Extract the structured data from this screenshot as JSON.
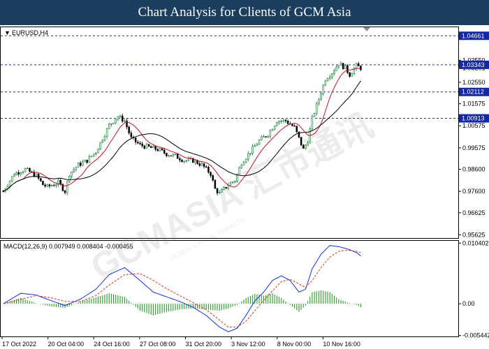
{
  "header": {
    "title": "Chart Analysis for Clients of GCM Asia"
  },
  "chart_data": {
    "type": "candlestick",
    "symbol_label": "EURUSD,H4",
    "price_axis": {
      "range": [
        0.9548,
        1.0505
      ],
      "ticks": [
        "1.04661",
        "1.03550",
        "1.03201",
        "1.02550",
        "1.01575",
        "1.00575",
        "0.99575",
        "0.98600",
        "0.97600",
        "0.96625",
        "0.95625"
      ]
    },
    "levels": [
      {
        "label": "1.04661",
        "value": 1.04661
      },
      {
        "label": "1.03343",
        "value": 1.03343
      },
      {
        "label": "1.02112",
        "value": 1.02112
      },
      {
        "label": "1.00913",
        "value": 1.00913
      }
    ],
    "x_labels": [
      "17 Oct 2022",
      "20 Oct 04:00",
      "24 Oct 16:00",
      "27 Oct 08:00",
      "31 Oct 20:00",
      "3 Nov 12:00",
      "8 Nov 00:00",
      "10 Nov 16:00"
    ],
    "price_path": [
      [
        0,
        0.976
      ],
      [
        5,
        0.984
      ],
      [
        10,
        0.986
      ],
      [
        15,
        0.983
      ],
      [
        18,
        0.979
      ],
      [
        20,
        0.978
      ],
      [
        25,
        0.98
      ],
      [
        28,
        0.976
      ],
      [
        30,
        0.984
      ],
      [
        34,
        0.988
      ],
      [
        38,
        0.99
      ],
      [
        42,
        0.994
      ],
      [
        45,
        1.0
      ],
      [
        48,
        1.006
      ],
      [
        52,
        1.01
      ],
      [
        55,
        1.008
      ],
      [
        58,
        1.0
      ],
      [
        62,
        0.997
      ],
      [
        66,
        0.996
      ],
      [
        70,
        0.995
      ],
      [
        74,
        0.993
      ],
      [
        78,
        0.992
      ],
      [
        82,
        0.99
      ],
      [
        86,
        0.99
      ],
      [
        90,
        0.988
      ],
      [
        94,
        0.984
      ],
      [
        96,
        0.977
      ],
      [
        98,
        0.975
      ],
      [
        102,
        0.979
      ],
      [
        105,
        0.981
      ],
      [
        108,
        0.989
      ],
      [
        112,
        0.994
      ],
      [
        116,
        0.999
      ],
      [
        120,
        1.002
      ],
      [
        124,
        1.008
      ],
      [
        128,
        1.008
      ],
      [
        132,
        1.005
      ],
      [
        134,
        1.0
      ],
      [
        136,
        0.995
      ],
      [
        138,
        0.999
      ],
      [
        140,
        1.009
      ],
      [
        143,
        1.018
      ],
      [
        146,
        1.027
      ],
      [
        149,
        1.03
      ],
      [
        152,
        1.034
      ],
      [
        155,
        1.032
      ],
      [
        157,
        1.029
      ],
      [
        160,
        1.033
      ],
      [
        162,
        1.032
      ]
    ],
    "indicator": {
      "label": "MACD(12,26,9) 0.007949 0.008404 -0.000455",
      "range": [
        -0.0056,
        0.0108
      ],
      "ticks": [
        "0.010402",
        "0.00",
        "-0.005442"
      ],
      "macd_path": [
        [
          0,
          0.0
        ],
        [
          8,
          0.0018
        ],
        [
          15,
          0.0015
        ],
        [
          22,
          0.0005
        ],
        [
          28,
          -0.0003
        ],
        [
          35,
          0.0008
        ],
        [
          42,
          0.0025
        ],
        [
          48,
          0.005
        ],
        [
          55,
          0.0062
        ],
        [
          62,
          0.004
        ],
        [
          68,
          0.002
        ],
        [
          74,
          0.0012
        ],
        [
          80,
          0.0004
        ],
        [
          86,
          -0.0006
        ],
        [
          92,
          -0.002
        ],
        [
          98,
          -0.004
        ],
        [
          102,
          -0.0048
        ],
        [
          106,
          -0.0042
        ],
        [
          110,
          -0.002
        ],
        [
          114,
          0.0005
        ],
        [
          118,
          0.002
        ],
        [
          122,
          0.004
        ],
        [
          126,
          0.0048
        ],
        [
          130,
          0.004
        ],
        [
          134,
          0.002
        ],
        [
          137,
          0.0025
        ],
        [
          140,
          0.006
        ],
        [
          144,
          0.0085
        ],
        [
          148,
          0.01
        ],
        [
          152,
          0.0098
        ],
        [
          156,
          0.0094
        ],
        [
          160,
          0.0088
        ],
        [
          162,
          0.0082
        ]
      ],
      "signal_path": [
        [
          0,
          0.0
        ],
        [
          8,
          0.0008
        ],
        [
          15,
          0.0014
        ],
        [
          22,
          0.001
        ],
        [
          28,
          0.0004
        ],
        [
          35,
          0.0004
        ],
        [
          42,
          0.0014
        ],
        [
          48,
          0.0032
        ],
        [
          55,
          0.005
        ],
        [
          62,
          0.0052
        ],
        [
          68,
          0.004
        ],
        [
          74,
          0.0026
        ],
        [
          80,
          0.0014
        ],
        [
          86,
          0.0002
        ],
        [
          92,
          -0.001
        ],
        [
          98,
          -0.0028
        ],
        [
          102,
          -0.004
        ],
        [
          106,
          -0.004
        ],
        [
          110,
          -0.003
        ],
        [
          114,
          -0.0012
        ],
        [
          118,
          0.0006
        ],
        [
          122,
          0.0022
        ],
        [
          126,
          0.0038
        ],
        [
          130,
          0.0042
        ],
        [
          134,
          0.0034
        ],
        [
          137,
          0.0028
        ],
        [
          140,
          0.004
        ],
        [
          144,
          0.0062
        ],
        [
          148,
          0.008
        ],
        [
          152,
          0.009
        ],
        [
          156,
          0.0092
        ],
        [
          160,
          0.009
        ],
        [
          162,
          0.0088
        ]
      ]
    }
  },
  "colors": {
    "header_bg": "#1b3e5e",
    "bull_candle": "#0a7a2a",
    "bear_candle": "#000000",
    "level_line": "#1f2fa0",
    "level_box": "#1428a0",
    "ma_fast": "#c8102e",
    "ma_slow": "#000000",
    "macd_line": "#1030e0",
    "signal_line": "#e03020",
    "histogram": "#2a9a2a"
  },
  "watermark": {
    "text": "GCMASIA 汇市通讯",
    "subtext": "GLOBAL CAPITAL MARKETS"
  }
}
